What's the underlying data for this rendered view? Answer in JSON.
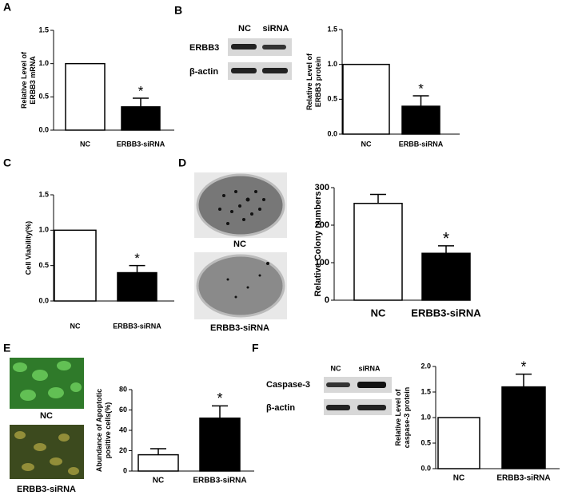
{
  "figure": {
    "panels": [
      "A",
      "B",
      "C",
      "D",
      "E",
      "F"
    ],
    "blots": [
      {
        "lanes": [
          "NC",
          "siRNA"
        ],
        "rows": [
          "ERBB3",
          "β-actin"
        ]
      },
      {
        "lanes": [
          "NC",
          "siRNA"
        ],
        "rows": [
          "Caspase-3",
          "β-actin"
        ]
      }
    ],
    "images": [
      {
        "labels": [
          "NC",
          "ERBB3-siRNA"
        ]
      },
      {
        "labels": [
          "NC",
          "ERBB3-siRNA"
        ]
      }
    ]
  },
  "chart_data": [
    {
      "type": "bar",
      "ylabel": [
        "Relative Level of",
        "ERBB3 mRNA"
      ],
      "categories": [
        "NC",
        "ERBB3-siRNA"
      ],
      "values": [
        1.0,
        0.35
      ],
      "errors": [
        null,
        0.13
      ],
      "significance": [
        null,
        "*"
      ],
      "colors": [
        "#ffffff",
        "#000000"
      ],
      "ylim": [
        0,
        1.5
      ],
      "yticks": [
        {
          "value": 0,
          "label": "0.0"
        },
        {
          "value": 0.5,
          "label": "0.5"
        },
        {
          "value": 1,
          "label": "1.0"
        },
        {
          "value": 1.5,
          "label": "1.5"
        }
      ]
    },
    {
      "type": "bar",
      "ylabel": [
        "Relative Level of",
        "ERBB3 protein"
      ],
      "categories": [
        "NC",
        "ERBB-siRNA"
      ],
      "values": [
        1.0,
        0.4
      ],
      "errors": [
        null,
        0.15
      ],
      "significance": [
        null,
        "*"
      ],
      "colors": [
        "#ffffff",
        "#000000"
      ],
      "ylim": [
        0,
        1.5
      ],
      "yticks": [
        {
          "value": 0,
          "label": "0.0"
        },
        {
          "value": 0.5,
          "label": "0.5"
        },
        {
          "value": 1,
          "label": "1.0"
        },
        {
          "value": 1.5,
          "label": "1.5"
        }
      ]
    },
    {
      "type": "bar",
      "ylabel": [
        "Cell Viability(%)"
      ],
      "categories": [
        "NC",
        "ERBB3-siRNA"
      ],
      "values": [
        1.0,
        0.4
      ],
      "errors": [
        null,
        0.1
      ],
      "significance": [
        null,
        "*"
      ],
      "colors": [
        "#ffffff",
        "#000000"
      ],
      "ylim": [
        0,
        1.5
      ],
      "yticks": [
        {
          "value": 0,
          "label": "0.0"
        },
        {
          "value": 0.5,
          "label": "0.5"
        },
        {
          "value": 1,
          "label": "1.0"
        },
        {
          "value": 1.5,
          "label": "1.5"
        }
      ]
    },
    {
      "type": "bar",
      "ylabel": [
        "Relative Colony numbers"
      ],
      "categories": [
        "NC",
        "ERBB3-siRNA"
      ],
      "values": [
        258,
        125
      ],
      "errors": [
        24,
        20
      ],
      "significance": [
        null,
        "*"
      ],
      "colors": [
        "#ffffff",
        "#000000"
      ],
      "ylim": [
        0,
        300
      ],
      "yticks": [
        0,
        100,
        200,
        300
      ]
    },
    {
      "type": "bar",
      "ylabel": [
        "Abundance of Apoptotic",
        "positive cells(%)"
      ],
      "categories": [
        "NC",
        "ERBB3-siRNA"
      ],
      "values": [
        16,
        52
      ],
      "errors": [
        6,
        12
      ],
      "significance": [
        null,
        "*"
      ],
      "colors": [
        "#ffffff",
        "#000000"
      ],
      "ylim": [
        0,
        80
      ],
      "yticks": [
        0,
        20,
        40,
        60,
        80
      ]
    },
    {
      "type": "bar",
      "ylabel": [
        "Relative Level of",
        "caspase-3 protein"
      ],
      "categories": [
        "NC",
        "ERBB3-siRNA"
      ],
      "values": [
        1.0,
        1.6
      ],
      "errors": [
        null,
        0.25
      ],
      "significance": [
        null,
        "*"
      ],
      "colors": [
        "#ffffff",
        "#000000"
      ],
      "ylim": [
        0,
        2
      ],
      "yticks": [
        {
          "value": 0,
          "label": "0.0"
        },
        {
          "value": 0.5,
          "label": "0.5"
        },
        {
          "value": 1,
          "label": "1.0"
        },
        {
          "value": 1.5,
          "label": "1.5"
        },
        {
          "value": 2,
          "label": "2.0"
        }
      ]
    }
  ]
}
